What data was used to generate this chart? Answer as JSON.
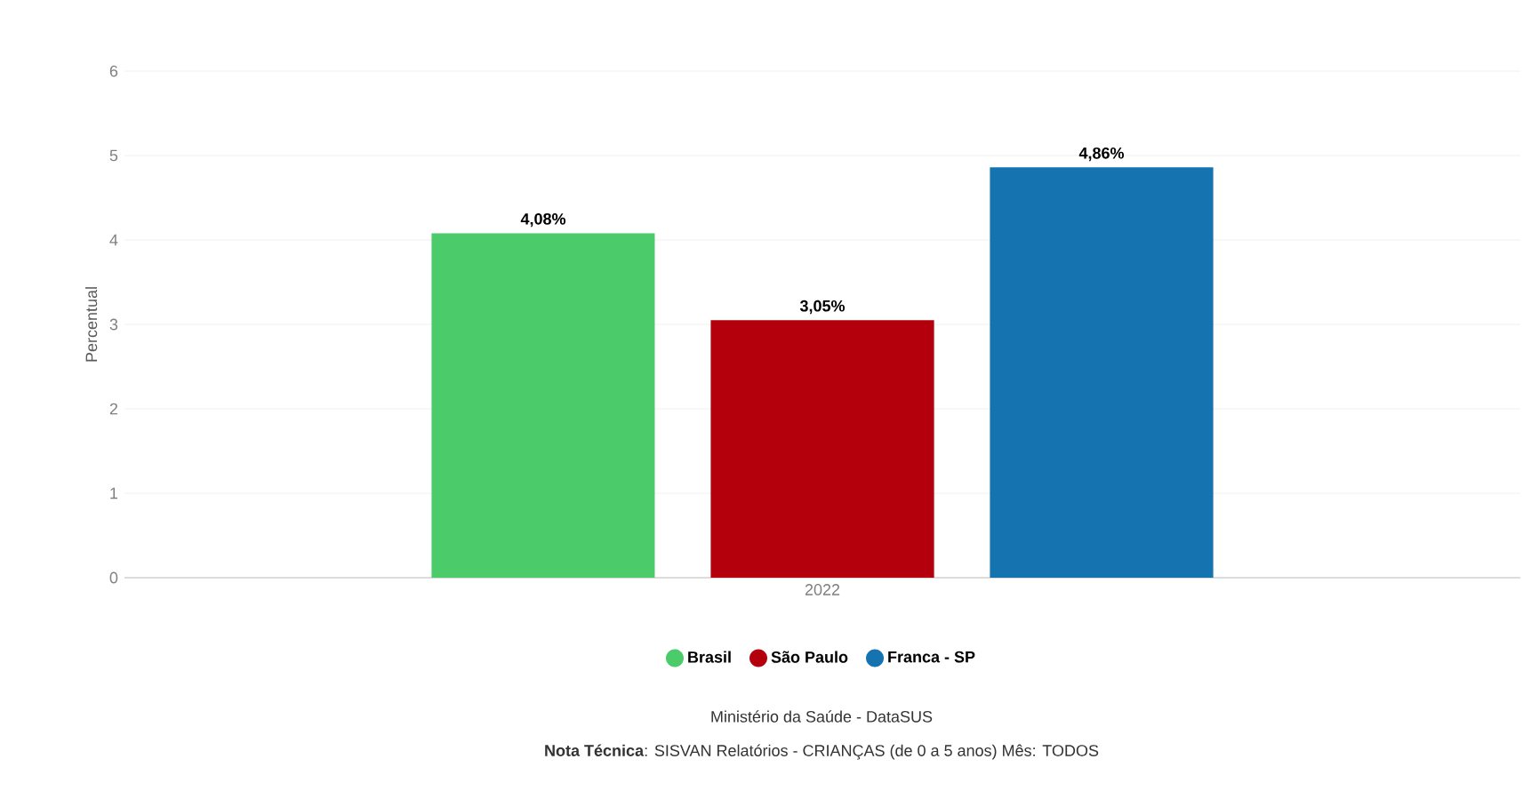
{
  "chart_data": {
    "type": "bar",
    "ylabel": "Percentual",
    "categories": [
      "2022"
    ],
    "series": [
      {
        "name": "Brasil",
        "color": "#4ccb6a",
        "values": [
          4.08
        ],
        "value_labels": [
          "4,08%"
        ]
      },
      {
        "name": "São Paulo",
        "color": "#b3000c",
        "values": [
          3.05
        ],
        "value_labels": [
          "3,05%"
        ]
      },
      {
        "name": "Franca - SP",
        "color": "#1573b0",
        "values": [
          4.86
        ],
        "value_labels": [
          "4,86%"
        ]
      }
    ],
    "ylim": [
      0,
      6
    ],
    "yticks": [
      0,
      1,
      2,
      3,
      4,
      5,
      6
    ],
    "grid": "y",
    "legend": "bottom",
    "annotations": [
      "Ministério da Saúde - DataSUS",
      "**Nota Técnica**: SISVAN Relatórios - CRIANÇAS (de 0 a 5 anos) Mês: TODOS"
    ]
  }
}
